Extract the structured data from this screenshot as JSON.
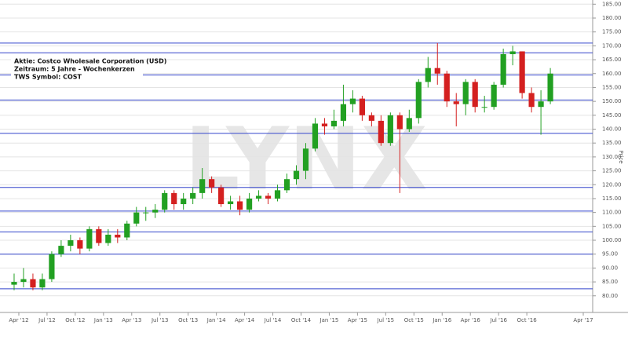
{
  "chart_data": {
    "type": "candlestick",
    "annotations": [
      "Aktie: Costco Wholesale Corporation (USD)",
      "Zeitraum: 5 Jahre - Wochenkerzen",
      "TWS Symbol: COST"
    ],
    "watermark": "LYNX",
    "y_label": "Price",
    "x": [
      "2012-03",
      "2012-04",
      "2012-05",
      "2012-06",
      "2012-07",
      "2012-08",
      "2012-09",
      "2012-10",
      "2012-11",
      "2012-12",
      "2013-01",
      "2013-02",
      "2013-03",
      "2013-04",
      "2013-05",
      "2013-06",
      "2013-07",
      "2013-08",
      "2013-09",
      "2013-10",
      "2013-11",
      "2013-12",
      "2014-01",
      "2014-02",
      "2014-03",
      "2014-04",
      "2014-05",
      "2014-06",
      "2014-07",
      "2014-08",
      "2014-09",
      "2014-10",
      "2014-11",
      "2014-12",
      "2015-01",
      "2015-02",
      "2015-03",
      "2015-04",
      "2015-05",
      "2015-06",
      "2015-07",
      "2015-08",
      "2015-09",
      "2015-10",
      "2015-11",
      "2015-12",
      "2016-01",
      "2016-02",
      "2016-03",
      "2016-04",
      "2016-05",
      "2016-06",
      "2016-07",
      "2016-08",
      "2016-09",
      "2016-10",
      "2016-11",
      "2016-12"
    ],
    "open": [
      84,
      85,
      86,
      83,
      86,
      95,
      98,
      100,
      97,
      104,
      99,
      102,
      101,
      106,
      110,
      110,
      111,
      117,
      113,
      115,
      117,
      122,
      119,
      113,
      114,
      111,
      115,
      116,
      115,
      118,
      122,
      125,
      133,
      142,
      141,
      143,
      149,
      151,
      145,
      143,
      135,
      145,
      140,
      144,
      157,
      162,
      160,
      150,
      149,
      157,
      148,
      148,
      156,
      167,
      168,
      153,
      148,
      150
    ],
    "high": [
      88,
      90,
      88,
      88,
      96,
      100,
      102,
      101,
      105,
      105,
      104,
      104,
      107,
      112,
      112,
      113,
      118,
      118,
      117,
      119,
      126,
      123,
      120,
      116,
      116,
      117,
      118,
      117,
      120,
      124,
      127,
      135,
      144,
      144,
      147,
      156,
      154,
      152,
      146,
      145,
      146,
      146,
      147,
      158,
      166,
      171,
      161,
      153,
      158,
      158,
      152,
      157,
      169,
      170,
      168,
      155,
      154,
      162
    ],
    "low": [
      82,
      83,
      82,
      82,
      85,
      94,
      96,
      95,
      96,
      98,
      98,
      99,
      100,
      105,
      107,
      108,
      110,
      111,
      111,
      113,
      115,
      117,
      112,
      111,
      109,
      110,
      114,
      113,
      114,
      117,
      120,
      122,
      132,
      138,
      140,
      141,
      146,
      143,
      141,
      134,
      134,
      117,
      139,
      142,
      155,
      156,
      148,
      141,
      145,
      146,
      146,
      147,
      155,
      163,
      151,
      146,
      138,
      149
    ],
    "close": [
      85,
      86,
      83,
      86,
      95,
      98,
      100,
      97,
      104,
      99,
      102,
      101,
      106,
      110,
      110,
      111,
      117,
      113,
      115,
      117,
      122,
      119,
      113,
      114,
      111,
      115,
      116,
      115,
      118,
      122,
      125,
      133,
      142,
      141,
      143,
      149,
      151,
      145,
      143,
      135,
      145,
      140,
      144,
      157,
      162,
      160,
      150,
      149,
      157,
      148,
      148,
      156,
      167,
      168,
      153,
      148,
      150,
      160
    ],
    "up_color": "#22a022",
    "down_color": "#d42020",
    "levels": [
      171,
      167.5,
      159.5,
      150.5,
      138.5,
      119,
      110.5,
      103,
      95,
      82.5
    ],
    "level_color": "#3344cc",
    "xlim": [
      "2012-02",
      "2017-05"
    ],
    "xticks": [
      {
        "value": "2012-04",
        "label": "Apr '12"
      },
      {
        "value": "2012-07",
        "label": "Jul '12"
      },
      {
        "value": "2012-10",
        "label": "Oct '12"
      },
      {
        "value": "2013-01",
        "label": "Jan '13"
      },
      {
        "value": "2013-04",
        "label": "Apr '13"
      },
      {
        "value": "2013-07",
        "label": "Jul '13"
      },
      {
        "value": "2013-10",
        "label": "Oct '13"
      },
      {
        "value": "2014-01",
        "label": "Jan '14"
      },
      {
        "value": "2014-04",
        "label": "Apr '14"
      },
      {
        "value": "2014-07",
        "label": "Jul '14"
      },
      {
        "value": "2014-10",
        "label": "Oct '14"
      },
      {
        "value": "2015-01",
        "label": "Jan '15"
      },
      {
        "value": "2015-04",
        "label": "Apr '15"
      },
      {
        "value": "2015-07",
        "label": "Jul '15"
      },
      {
        "value": "2015-10",
        "label": "Oct '15"
      },
      {
        "value": "2016-01",
        "label": "Jan '16"
      },
      {
        "value": "2016-04",
        "label": "Apr '16"
      },
      {
        "value": "2016-07",
        "label": "Jul '16"
      },
      {
        "value": "2016-10",
        "label": "Oct '16"
      },
      {
        "value": "2017-04",
        "label": "Apr '17"
      }
    ],
    "ylim": [
      74,
      186.5
    ],
    "yticks": [
      {
        "value": 80,
        "label": "80.00"
      },
      {
        "value": 85,
        "label": "85.00"
      },
      {
        "value": 90,
        "label": "90.00"
      },
      {
        "value": 95,
        "label": "95.00"
      },
      {
        "value": 100,
        "label": "100.00"
      },
      {
        "value": 105,
        "label": "105.00"
      },
      {
        "value": 110,
        "label": "110.00"
      },
      {
        "value": 115,
        "label": "115.00"
      },
      {
        "value": 120,
        "label": "120.00"
      },
      {
        "value": 125,
        "label": "125.00"
      },
      {
        "value": 130,
        "label": "130.00"
      },
      {
        "value": 135,
        "label": "135.00"
      },
      {
        "value": 140,
        "label": "140.00"
      },
      {
        "value": 145,
        "label": "145.00"
      },
      {
        "value": 150,
        "label": "150.00"
      },
      {
        "value": 155,
        "label": "155.00"
      },
      {
        "value": 160,
        "label": "160.00"
      },
      {
        "value": 165,
        "label": "165.00"
      },
      {
        "value": 170,
        "label": "170.00"
      },
      {
        "value": 175,
        "label": "175.00"
      },
      {
        "value": 180,
        "label": "180.00"
      },
      {
        "value": 185,
        "label": "185.00"
      }
    ],
    "grid": true
  }
}
